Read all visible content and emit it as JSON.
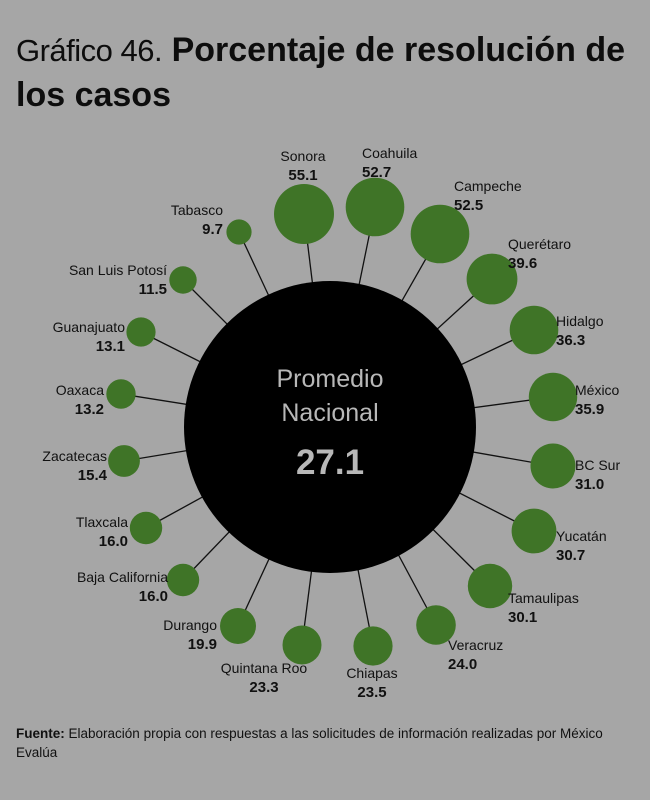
{
  "title": {
    "prefix": "Gráfico 46.",
    "main": "Porcentaje de resolución de los casos"
  },
  "source": {
    "label": "Fuente:",
    "text": "Elaboración propia con respuestas a las solicitudes de información realizadas por México Evalúa"
  },
  "colors": {
    "background": "#a6a6a6",
    "bubble": "#3f7427",
    "center": "#000000",
    "line": "#111111"
  },
  "chart_data": {
    "type": "bubble-radial",
    "title": "Porcentaje de resolución de los casos",
    "center": {
      "label_line1": "Promedio",
      "label_line2": "Nacional",
      "value": "27.1"
    },
    "points": [
      {
        "name": "Coahuila",
        "value": 52.7
      },
      {
        "name": "Campeche",
        "value": 52.5
      },
      {
        "name": "Querétaro",
        "value": 39.6
      },
      {
        "name": "Hidalgo",
        "value": 36.3
      },
      {
        "name": "México",
        "value": 35.9
      },
      {
        "name": "BC Sur",
        "value": 31.0
      },
      {
        "name": "Yucatán",
        "value": 30.7
      },
      {
        "name": "Tamaulipas",
        "value": 30.1
      },
      {
        "name": "Veracruz",
        "value": 24.0
      },
      {
        "name": "Chiapas",
        "value": 23.5
      },
      {
        "name": "Quintana Roo",
        "value": 23.3
      },
      {
        "name": "Durango",
        "value": 19.9
      },
      {
        "name": "Baja California",
        "value": 16.0
      },
      {
        "name": "Tlaxcala",
        "value": 16.0
      },
      {
        "name": "Zacatecas",
        "value": 15.4
      },
      {
        "name": "Oaxaca",
        "value": 13.2
      },
      {
        "name": "Guanajuato",
        "value": 13.1
      },
      {
        "name": "San Luis Potosí",
        "value": 11.5
      },
      {
        "name": "Tabasco",
        "value": 9.7
      },
      {
        "name": "Sonora",
        "value": 55.1
      }
    ]
  }
}
